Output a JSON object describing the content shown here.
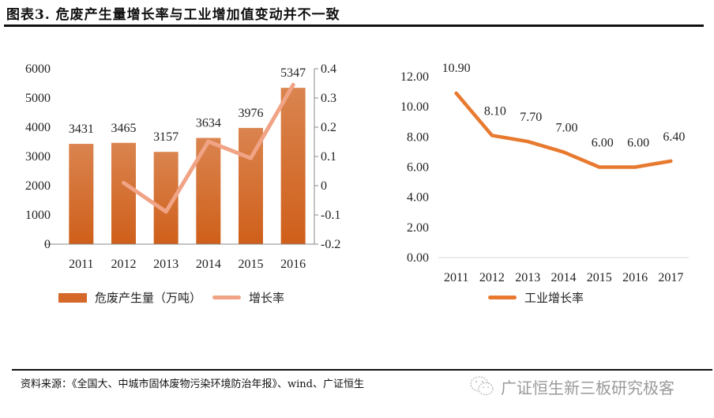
{
  "header": {
    "title": "图表3. 危废产生量增长率与工业增加值变动并不一致"
  },
  "colors": {
    "bar_top": "#DA844F",
    "bar_bottom": "#CF5F1A",
    "growth_line": "#F0A385",
    "industry_line": "#E87A30",
    "axis": "#888888",
    "gridline": "#D9D9D9"
  },
  "chart_data": [
    {
      "type": "bar",
      "title": "",
      "categories": [
        "2011",
        "2012",
        "2013",
        "2014",
        "2015",
        "2016"
      ],
      "series": [
        {
          "name": "危废产生量（万吨）",
          "type": "bar",
          "axis": "left",
          "values": [
            3431,
            3465,
            3157,
            3634,
            3976,
            5347
          ],
          "data_labels": [
            "3431",
            "3465",
            "3157",
            "3634",
            "3976",
            "5347"
          ]
        },
        {
          "name": "增长率",
          "type": "line",
          "axis": "right",
          "values": [
            null,
            0.0099,
            -0.0889,
            0.1511,
            0.0941,
            0.3448
          ]
        }
      ],
      "y_left": {
        "ylim": [
          0,
          6000
        ],
        "ticks": [
          "0",
          "1000",
          "2000",
          "3000",
          "4000",
          "5000",
          "6000"
        ]
      },
      "y_right": {
        "ylim": [
          -0.2,
          0.4
        ],
        "ticks": [
          "-0.2",
          "-0.1",
          "0",
          "0.1",
          "0.2",
          "0.3",
          "0.4"
        ]
      },
      "xlabel": "",
      "ylabel": "",
      "grid": false,
      "legend": {
        "placement": "bottom",
        "entries": [
          "危废产生量（万吨）",
          "增长率"
        ]
      }
    },
    {
      "type": "line",
      "title": "",
      "categories": [
        "2011",
        "2012",
        "2013",
        "2014",
        "2015",
        "2016",
        "2017"
      ],
      "series": [
        {
          "name": "工业增长率",
          "values": [
            10.9,
            8.1,
            7.7,
            7.0,
            6.0,
            6.0,
            6.4
          ],
          "data_labels": [
            "10.90",
            "8.10",
            "7.70",
            "7.00",
            "6.00",
            "6.00",
            "6.40"
          ]
        }
      ],
      "ylim": [
        0,
        12
      ],
      "y_ticks": [
        "0.00",
        "2.00",
        "4.00",
        "6.00",
        "8.00",
        "10.00",
        "12.00"
      ],
      "xlabel": "",
      "ylabel": "",
      "grid": false,
      "legend": {
        "placement": "bottom",
        "entries": [
          "工业增长率"
        ]
      }
    }
  ],
  "footer": {
    "source": "资料来源：《全国大、中城市固体废物污染环境防治年报》、wind、广证恒生",
    "watermark": "广证恒生新三板研究极客",
    "watermark_icon": "wechat-icon"
  }
}
